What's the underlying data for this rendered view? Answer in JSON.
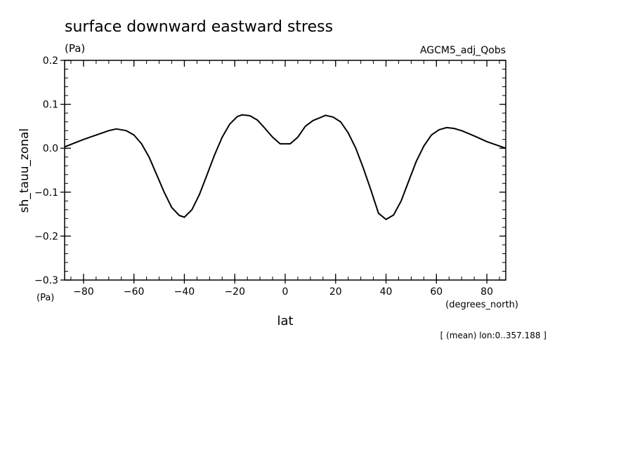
{
  "chart_data": {
    "type": "line",
    "title": "surface downward eastward stress",
    "title_units": "(Pa)",
    "dataset_label": "AGCM5_adj_Qobs",
    "ylabel": "sh_tauu_zonal",
    "y_units": "(Pa)",
    "xlabel": "lat",
    "x_units": "(degrees_north)",
    "footnote": "[ (mean) lon:0..357.188 ]",
    "xlim": [
      -87.5,
      87.5
    ],
    "ylim": [
      -0.3,
      0.2
    ],
    "x_ticks": [
      -80,
      -60,
      -40,
      -20,
      0,
      20,
      40,
      60,
      80
    ],
    "x_tick_labels": [
      "−80",
      "−60",
      "−40",
      "−20",
      "0",
      "20",
      "40",
      "60",
      "80"
    ],
    "y_ticks": [
      -0.3,
      -0.2,
      -0.1,
      0.0,
      0.1,
      0.2
    ],
    "y_tick_labels": [
      "−0.3",
      "−0.2",
      "−0.1",
      "0.0",
      "0.1",
      "0.2"
    ],
    "grid": false,
    "line_color": "#000000",
    "series": [
      {
        "x": [
          -87.5,
          -80,
          -75,
          -70,
          -67,
          -63,
          -60,
          -57,
          -54,
          -51,
          -48,
          -45,
          -42,
          -40,
          -37,
          -34,
          -31,
          -28,
          -25,
          -22,
          -19,
          -17,
          -14,
          -11,
          -8,
          -5,
          -2,
          0,
          2,
          5,
          8,
          11,
          14,
          16,
          19,
          22,
          25,
          28,
          31,
          34,
          37,
          40,
          43,
          46,
          49,
          52,
          55,
          58,
          61,
          64,
          67,
          70,
          75,
          80,
          87.5
        ],
        "y": [
          0.003,
          0.02,
          0.03,
          0.04,
          0.044,
          0.04,
          0.03,
          0.01,
          -0.02,
          -0.06,
          -0.1,
          -0.135,
          -0.153,
          -0.157,
          -0.14,
          -0.105,
          -0.06,
          -0.015,
          0.025,
          0.055,
          0.072,
          0.076,
          0.074,
          0.064,
          0.045,
          0.025,
          0.01,
          0.01,
          0.01,
          0.025,
          0.05,
          0.063,
          0.07,
          0.075,
          0.071,
          0.06,
          0.035,
          0.0,
          -0.045,
          -0.095,
          -0.148,
          -0.162,
          -0.152,
          -0.12,
          -0.075,
          -0.03,
          0.005,
          0.03,
          0.042,
          0.047,
          0.045,
          0.04,
          0.028,
          0.015,
          0.0
        ]
      }
    ]
  }
}
